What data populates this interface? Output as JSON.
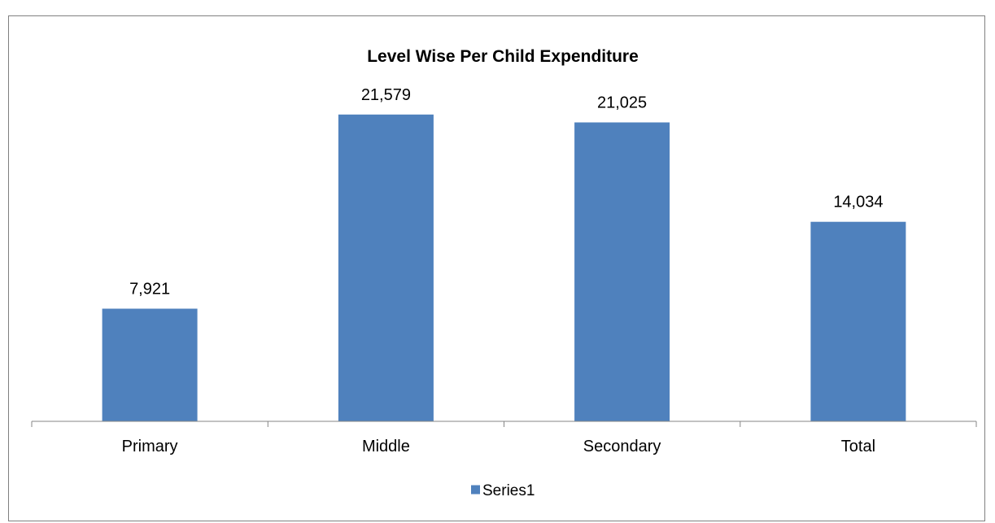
{
  "chart_data": {
    "type": "bar",
    "title": "Level Wise Per Child Expenditure",
    "categories": [
      "Primary",
      "Middle",
      "Secondary",
      "Total"
    ],
    "series": [
      {
        "name": "Series1",
        "values": [
          7921,
          21579,
          21025,
          14034
        ],
        "labels": [
          "7,921",
          "21,579",
          "21,025",
          "14,034"
        ],
        "color": "#4F81BD"
      }
    ],
    "xlabel": "",
    "ylabel": "",
    "ylim": [
      0,
      25000
    ],
    "grid": false,
    "legend_position": "bottom"
  }
}
